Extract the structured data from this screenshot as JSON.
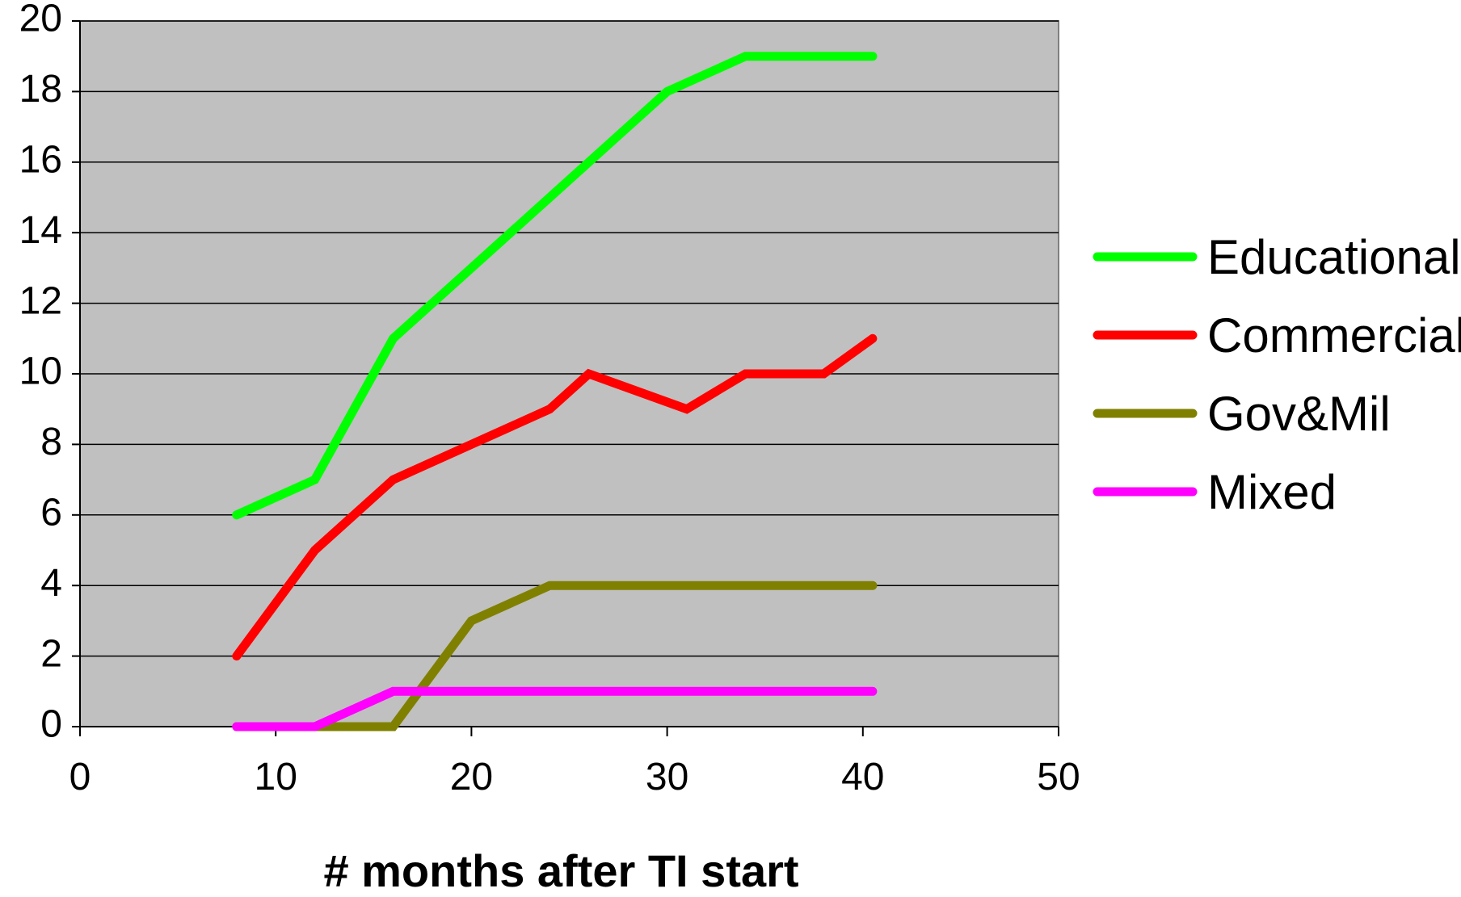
{
  "chart_data": {
    "type": "line",
    "title": "",
    "xlabel": "# months after TI start",
    "ylabel": "",
    "xlim": [
      0,
      50
    ],
    "ylim": [
      0,
      20
    ],
    "xticks": [
      0,
      10,
      20,
      30,
      40,
      50
    ],
    "yticks": [
      0,
      2,
      4,
      6,
      8,
      10,
      12,
      14,
      16,
      18,
      20
    ],
    "grid": true,
    "legend": "right",
    "plot_background": "#c0c0c0",
    "series": [
      {
        "name": "Educational",
        "color": "#00ff00",
        "points": [
          [
            8,
            6
          ],
          [
            12,
            7
          ],
          [
            16,
            11
          ],
          [
            20,
            13
          ],
          [
            24,
            15
          ],
          [
            26,
            16
          ],
          [
            30,
            18
          ],
          [
            34,
            19
          ],
          [
            38,
            19
          ],
          [
            40.5,
            19
          ]
        ]
      },
      {
        "name": "Commercial",
        "color": "#ff0000",
        "points": [
          [
            8,
            2
          ],
          [
            12,
            5
          ],
          [
            16,
            7
          ],
          [
            20,
            8
          ],
          [
            24,
            9
          ],
          [
            26,
            10
          ],
          [
            31,
            9
          ],
          [
            34,
            10
          ],
          [
            38,
            10
          ],
          [
            40.5,
            11
          ]
        ]
      },
      {
        "name": "Gov&Mil",
        "color": "#808000",
        "points": [
          [
            8,
            0
          ],
          [
            12,
            0
          ],
          [
            16,
            0
          ],
          [
            20,
            3
          ],
          [
            24,
            4
          ],
          [
            26,
            4
          ],
          [
            30,
            4
          ],
          [
            34,
            4
          ],
          [
            38,
            4
          ],
          [
            40.5,
            4
          ]
        ]
      },
      {
        "name": "Mixed",
        "color": "#ff00ff",
        "points": [
          [
            8,
            0
          ],
          [
            12,
            0
          ],
          [
            16,
            1
          ],
          [
            20,
            1
          ],
          [
            24,
            1
          ],
          [
            26,
            1
          ],
          [
            30,
            1
          ],
          [
            34,
            1
          ],
          [
            38,
            1
          ],
          [
            40.5,
            1
          ]
        ]
      }
    ]
  }
}
